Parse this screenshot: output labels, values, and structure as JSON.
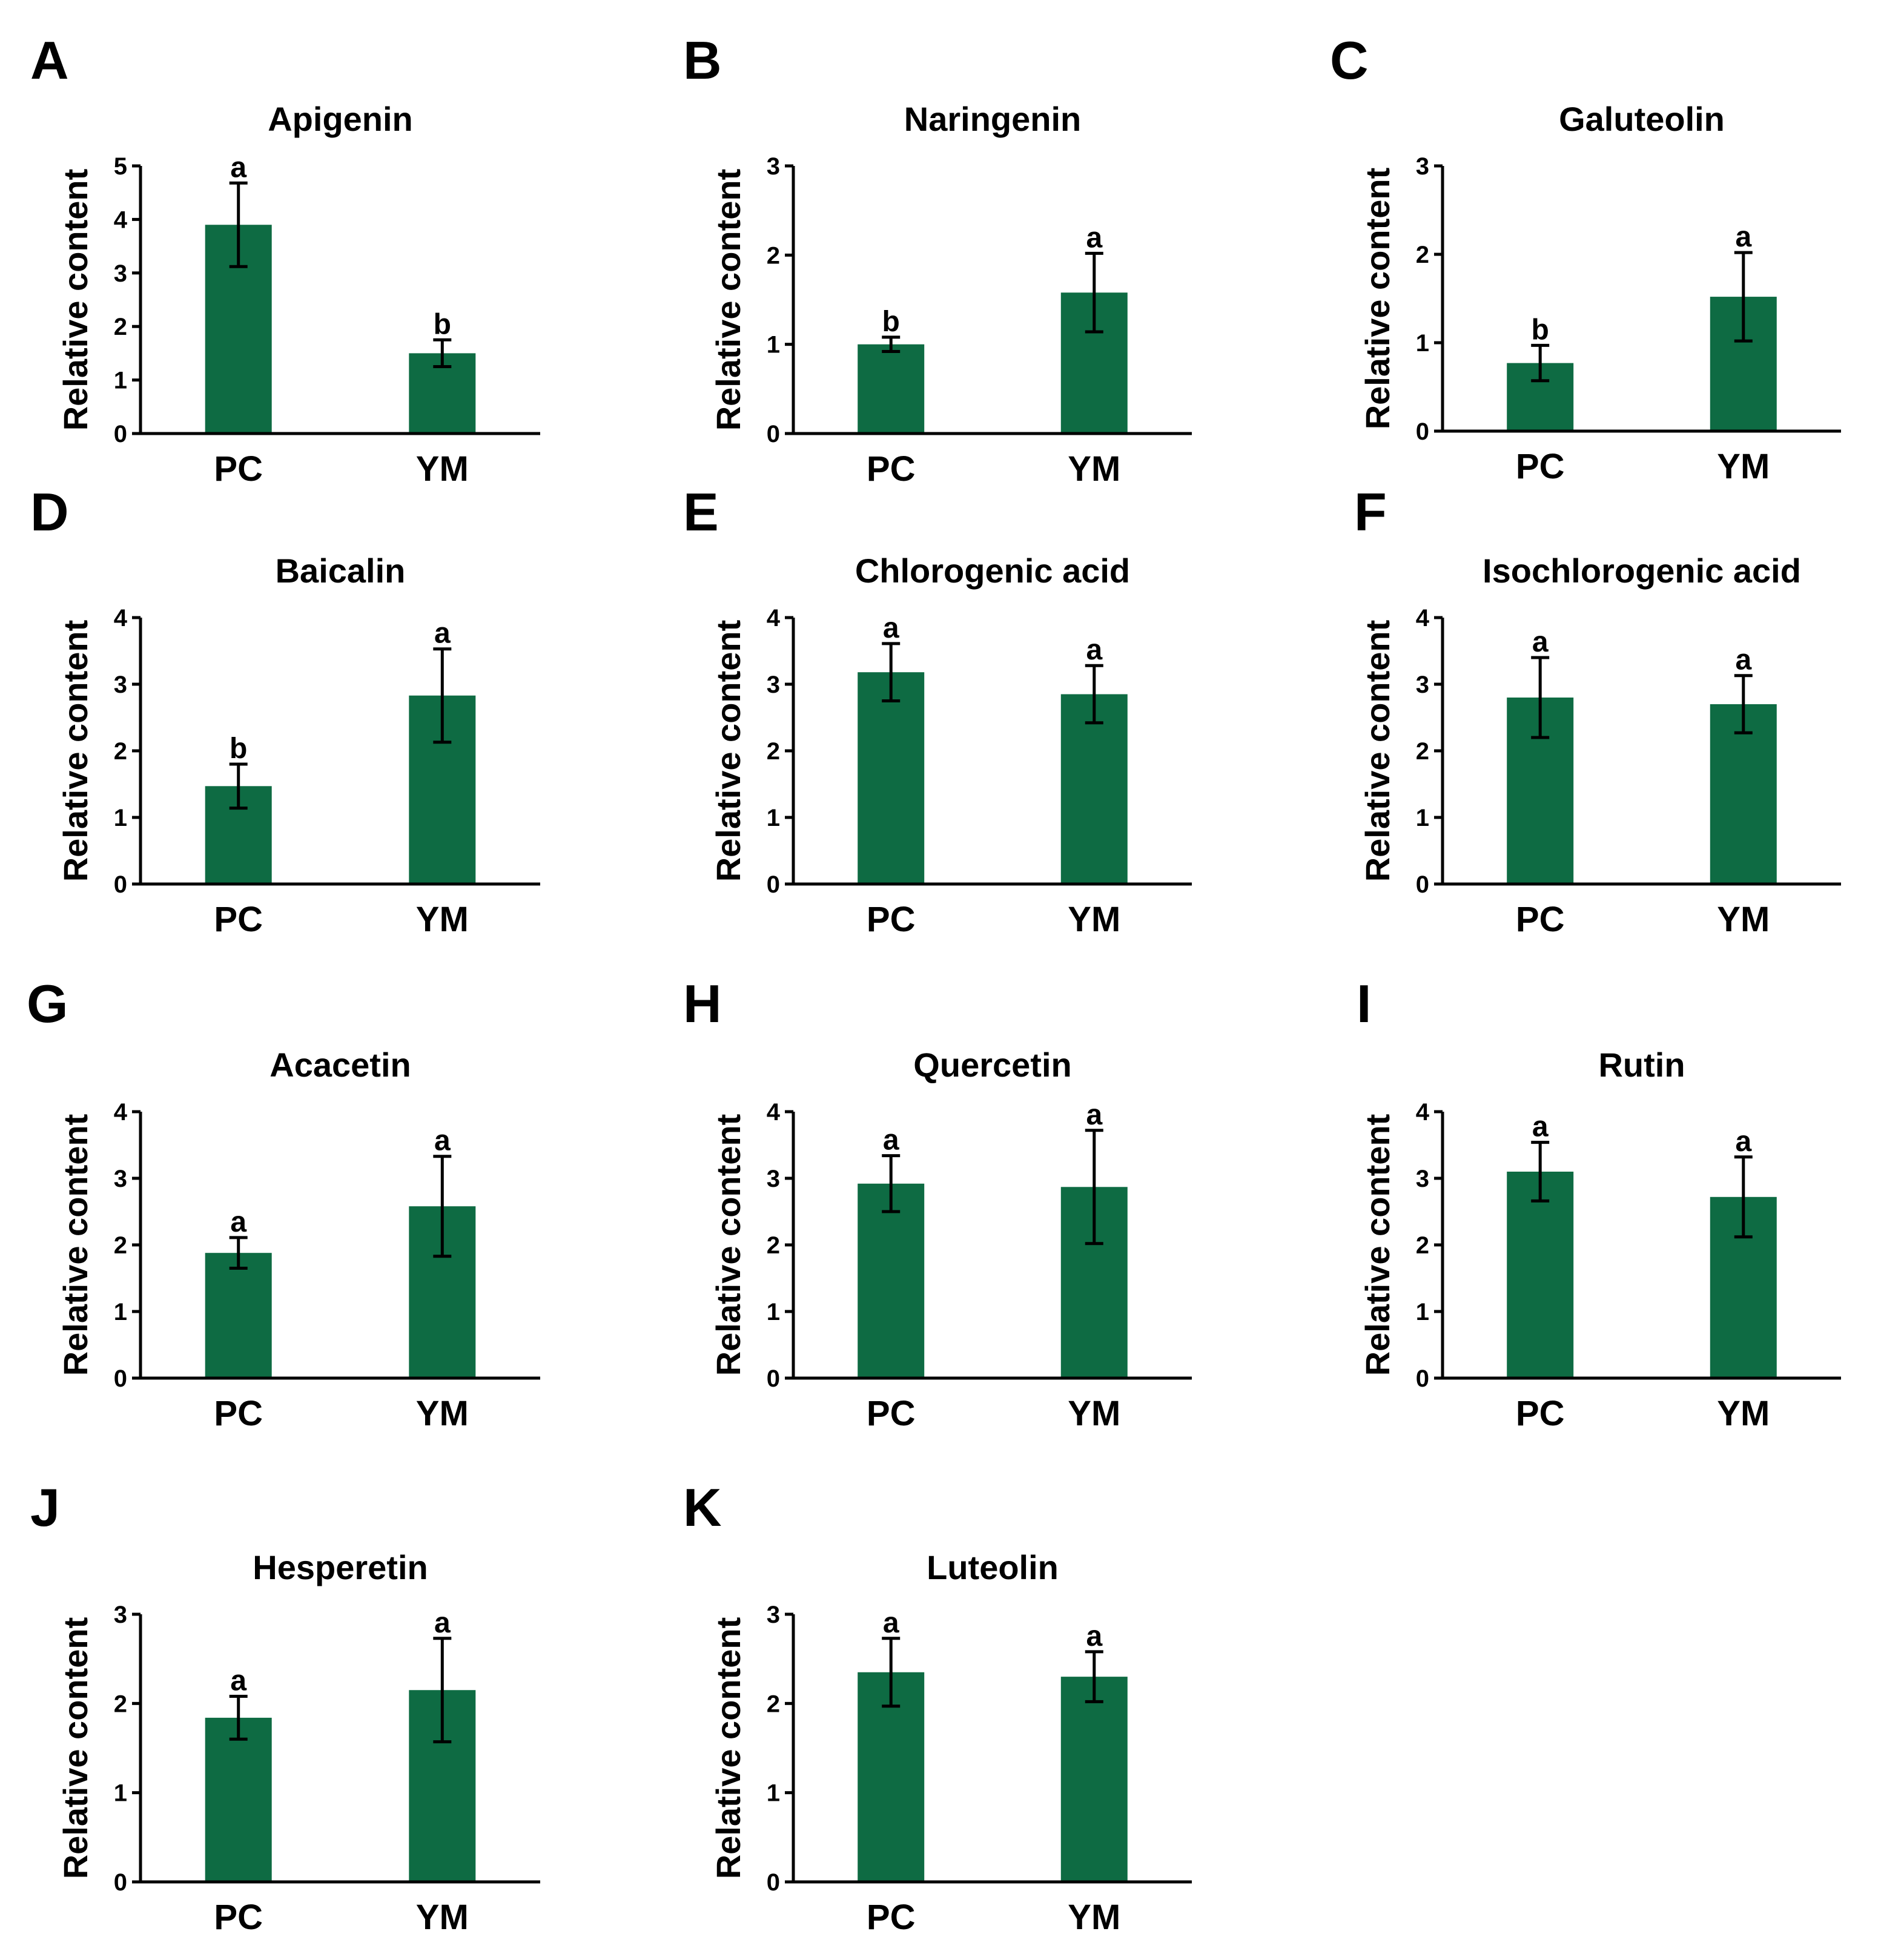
{
  "colors": {
    "bar": "#0E6B43",
    "axis": "#000000",
    "background": "#ffffff"
  },
  "chart_data": [
    {
      "panel": "A",
      "type": "bar",
      "title": "Apigenin",
      "ylabel": "Relative content",
      "xlabel": "",
      "categories": [
        "PC",
        "YM"
      ],
      "values": [
        3.9,
        1.5
      ],
      "errors": [
        0.78,
        0.25
      ],
      "significance": [
        "a",
        "b"
      ],
      "ylim": [
        0,
        5
      ],
      "yticks": [
        "0",
        "1",
        "2",
        "3",
        "4",
        "5"
      ]
    },
    {
      "panel": "B",
      "type": "bar",
      "title": "Naringenin",
      "ylabel": "Relative content",
      "xlabel": "",
      "categories": [
        "PC",
        "YM"
      ],
      "values": [
        1.0,
        1.58
      ],
      "errors": [
        0.08,
        0.44
      ],
      "significance": [
        "b",
        "a"
      ],
      "ylim": [
        0,
        3
      ],
      "yticks": [
        "0",
        "1",
        "2",
        "3"
      ]
    },
    {
      "panel": "C",
      "type": "bar",
      "title": "Galuteolin",
      "ylabel": "Relative content",
      "xlabel": "",
      "categories": [
        "PC",
        "YM"
      ],
      "values": [
        0.77,
        1.52
      ],
      "errors": [
        0.2,
        0.5
      ],
      "significance": [
        "b",
        "a"
      ],
      "ylim": [
        0,
        3
      ],
      "yticks": [
        "0",
        "1",
        "2",
        "3"
      ]
    },
    {
      "panel": "D",
      "type": "bar",
      "title": "Baicalin",
      "ylabel": "Relative content",
      "xlabel": "",
      "categories": [
        "PC",
        "YM"
      ],
      "values": [
        1.47,
        2.83
      ],
      "errors": [
        0.33,
        0.7
      ],
      "significance": [
        "b",
        "a"
      ],
      "ylim": [
        0,
        4
      ],
      "yticks": [
        "0",
        "1",
        "2",
        "3",
        "4"
      ]
    },
    {
      "panel": "E",
      "type": "bar",
      "title": "Chlorogenic acid",
      "ylabel": "Relative content",
      "xlabel": "",
      "categories": [
        "PC",
        "YM"
      ],
      "values": [
        3.18,
        2.85
      ],
      "errors": [
        0.43,
        0.43
      ],
      "significance": [
        "a",
        "a"
      ],
      "ylim": [
        0,
        4
      ],
      "yticks": [
        "0",
        "1",
        "2",
        "3",
        "4"
      ]
    },
    {
      "panel": "F",
      "type": "bar",
      "title": "Isochlorogenic acid",
      "ylabel": "Relative content",
      "xlabel": "",
      "categories": [
        "PC",
        "YM"
      ],
      "values": [
        2.8,
        2.7
      ],
      "errors": [
        0.6,
        0.43
      ],
      "significance": [
        "a",
        "a"
      ],
      "ylim": [
        0,
        4
      ],
      "yticks": [
        "0",
        "1",
        "2",
        "3",
        "4"
      ]
    },
    {
      "panel": "G",
      "type": "bar",
      "title": "Acacetin",
      "ylabel": "Relative content",
      "xlabel": "",
      "categories": [
        "PC",
        "YM"
      ],
      "values": [
        1.88,
        2.58
      ],
      "errors": [
        0.23,
        0.75
      ],
      "significance": [
        "a",
        "a"
      ],
      "ylim": [
        0,
        4
      ],
      "yticks": [
        "0",
        "1",
        "2",
        "3",
        "4"
      ]
    },
    {
      "panel": "H",
      "type": "bar",
      "title": "Quercetin",
      "ylabel": "Relative content",
      "xlabel": "",
      "categories": [
        "PC",
        "YM"
      ],
      "values": [
        2.92,
        2.87
      ],
      "errors": [
        0.42,
        0.85
      ],
      "significance": [
        "a",
        "a"
      ],
      "ylim": [
        0,
        4
      ],
      "yticks": [
        "0",
        "1",
        "2",
        "3",
        "4"
      ]
    },
    {
      "panel": "I",
      "type": "bar",
      "title": "Rutin",
      "ylabel": "Relative content",
      "xlabel": "",
      "categories": [
        "PC",
        "YM"
      ],
      "values": [
        3.1,
        2.72
      ],
      "errors": [
        0.44,
        0.6
      ],
      "significance": [
        "a",
        "a"
      ],
      "ylim": [
        0,
        4
      ],
      "yticks": [
        "0",
        "1",
        "2",
        "3",
        "4"
      ]
    },
    {
      "panel": "J",
      "type": "bar",
      "title": "Hesperetin",
      "ylabel": "Relative content",
      "xlabel": "",
      "categories": [
        "PC",
        "YM"
      ],
      "values": [
        1.84,
        2.15
      ],
      "errors": [
        0.24,
        0.58
      ],
      "significance": [
        "a",
        "a"
      ],
      "ylim": [
        0,
        3
      ],
      "yticks": [
        "0",
        "1",
        "2",
        "3"
      ]
    },
    {
      "panel": "K",
      "type": "bar",
      "title": "Luteolin",
      "ylabel": "Relative content",
      "xlabel": "",
      "categories": [
        "PC",
        "YM"
      ],
      "values": [
        2.35,
        2.3
      ],
      "errors": [
        0.38,
        0.28
      ],
      "significance": [
        "a",
        "a"
      ],
      "ylim": [
        0,
        3
      ],
      "yticks": [
        "0",
        "1",
        "2",
        "3"
      ]
    }
  ]
}
